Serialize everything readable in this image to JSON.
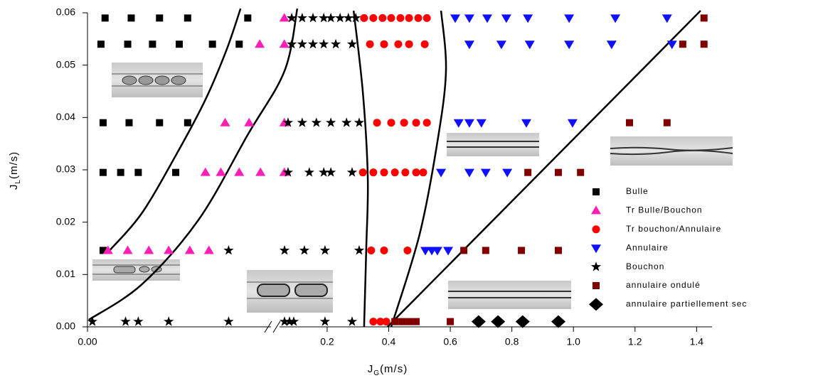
{
  "chart_data": {
    "type": "scatter",
    "xlabel": {
      "text": "J",
      "sub": "G",
      "unit": "(m/s)"
    },
    "ylabel": {
      "text": "J",
      "sub": "L",
      "unit": "(m/s)"
    },
    "x_segments": [
      {
        "xlim": [
          0,
          0.012
        ],
        "xticks": [
          {
            "value": 0,
            "label": "0.00"
          }
        ]
      },
      {
        "xlim": [
          0.05,
          1.45
        ],
        "xticks": [
          0.2,
          0.4,
          0.6,
          0.8,
          {
            "value": 1,
            "label": "1.0"
          },
          1.2,
          1.4
        ]
      }
    ],
    "ylim": [
      0,
      0.06
    ],
    "yticks": [
      {
        "value": 0,
        "label": "0.00"
      },
      {
        "value": 0.01,
        "label": "0.01"
      },
      {
        "value": 0.02,
        "label": "0.02"
      },
      {
        "value": 0.03,
        "label": "0.03"
      },
      {
        "value": 0.04,
        "label": "0.04"
      },
      {
        "value": 0.05,
        "label": "0.05"
      },
      {
        "value": 0.06,
        "label": "0.06"
      }
    ],
    "legend": "right",
    "series": [
      {
        "name": "Bulle",
        "color": "#000000",
        "marker": "square",
        "x": [
          0.00115,
          0.00286,
          0.00471,
          0.00655,
          0.01048,
          0.00088,
          0.00263,
          0.00425,
          0.006,
          0.00817,
          0.00992,
          0.00102,
          0.00272,
          0.00471,
          0.00655,
          0.00102,
          0.00217,
          0.00332,
          0.00577,
          0.00102
        ],
        "values": [
          0.059,
          0.059,
          0.059,
          0.059,
          0.059,
          0.054,
          0.054,
          0.054,
          0.054,
          0.054,
          0.054,
          0.039,
          0.039,
          0.039,
          0.039,
          0.0295,
          0.0295,
          0.0295,
          0.0295,
          0.0146
        ]
      },
      {
        "name": "Tr Bulle/Bouchon",
        "color": "#ff1fb4",
        "marker": "triangle-up",
        "x": [
          0.061,
          0.01126,
          0.061,
          0.009,
          0.01057,
          0.061,
          0.00771,
          0.00872,
          0.00992,
          0.01131,
          0.061,
          0.00134,
          0.00263,
          0.00401,
          0.00531,
          0.00669,
          0.00794
        ],
        "values": [
          0.059,
          0.054,
          0.054,
          0.039,
          0.039,
          0.039,
          0.0295,
          0.0295,
          0.0295,
          0.0295,
          0.0295,
          0.0146,
          0.0146,
          0.0146,
          0.0146,
          0.0146,
          0.0146
        ]
      },
      {
        "name": "Tr bouchon/Annulaire",
        "color": "#ff0000",
        "marker": "circle",
        "x": [
          0.32,
          0.35,
          0.38,
          0.408,
          0.438,
          0.466,
          0.496,
          0.524,
          0.339,
          0.385,
          0.431,
          0.466,
          0.517,
          0.362,
          0.408,
          0.45,
          0.489,
          0.524,
          0.316,
          0.35,
          0.385,
          0.42,
          0.454,
          0.489,
          0.512,
          0.343,
          0.385,
          0.461,
          0.35,
          0.373,
          0.392
        ],
        "values": [
          0.059,
          0.059,
          0.059,
          0.059,
          0.059,
          0.059,
          0.059,
          0.059,
          0.054,
          0.054,
          0.054,
          0.054,
          0.054,
          0.039,
          0.039,
          0.039,
          0.039,
          0.039,
          0.0295,
          0.0295,
          0.0295,
          0.0295,
          0.0295,
          0.0295,
          0.0295,
          0.0146,
          0.0146,
          0.0146,
          0.001,
          0.001,
          0.001
        ]
      },
      {
        "name": "Annulaire",
        "color": "#1010ff",
        "marker": "triangle-down",
        "x": [
          0.616,
          0.662,
          0.72,
          0.782,
          0.852,
          0.986,
          1.136,
          1.304,
          0.662,
          0.766,
          0.858,
          0.986,
          1.124,
          1.32,
          0.627,
          0.662,
          0.701,
          0.847,
          0.997,
          0.57,
          0.662,
          0.715,
          0.785,
          0.519,
          0.54,
          0.558,
          0.593
        ],
        "values": [
          0.059,
          0.059,
          0.059,
          0.059,
          0.059,
          0.059,
          0.059,
          0.059,
          0.054,
          0.054,
          0.054,
          0.054,
          0.054,
          0.054,
          0.039,
          0.039,
          0.039,
          0.039,
          0.039,
          0.0295,
          0.0295,
          0.0295,
          0.0295,
          0.0146,
          0.0146,
          0.0146,
          0.0146
        ]
      },
      {
        "name": "Bouchon",
        "color": "#000000",
        "marker": "star",
        "x": [
          0.085,
          0.119,
          0.154,
          0.189,
          0.212,
          0.242,
          0.269,
          0.293,
          0.085,
          0.119,
          0.154,
          0.189,
          0.228,
          0.281,
          0.073,
          0.119,
          0.165,
          0.212,
          0.263,
          0.304,
          0.073,
          0.142,
          0.189,
          0.212,
          0.281,
          0.00923,
          0.0616,
          0.126,
          0.193,
          0.304,
          0.00032,
          0.00249,
          0.00332,
          0.00531,
          0.00923,
          0.0616,
          0.0777,
          0.0916,
          0.193,
          0.281
        ],
        "values": [
          0.059,
          0.059,
          0.059,
          0.059,
          0.059,
          0.059,
          0.059,
          0.059,
          0.054,
          0.054,
          0.054,
          0.054,
          0.054,
          0.054,
          0.039,
          0.039,
          0.039,
          0.039,
          0.039,
          0.039,
          0.0295,
          0.0295,
          0.0295,
          0.0295,
          0.0295,
          0.0146,
          0.0146,
          0.0146,
          0.0146,
          0.0146,
          0.001,
          0.001,
          0.001,
          0.001,
          0.001,
          0.001,
          0.001,
          0.001,
          0.001,
          0.001
        ]
      },
      {
        "name": "annulaire ondulé",
        "color": "#800000",
        "marker": "square",
        "x": [
          1.424,
          1.355,
          1.424,
          1.182,
          1.304,
          0.852,
          0.951,
          1.023,
          0.644,
          0.715,
          0.831,
          0.951,
          0.42,
          0.443,
          0.466,
          0.489,
          0.6
        ],
        "values": [
          0.059,
          0.054,
          0.054,
          0.039,
          0.039,
          0.0295,
          0.0295,
          0.0295,
          0.0146,
          0.0146,
          0.0146,
          0.0146,
          0.001,
          0.001,
          0.001,
          0.001,
          0.001
        ]
      },
      {
        "name": "annulaire partiellement sec",
        "color": "#000000",
        "marker": "diamond",
        "x": [
          0.692,
          0.755,
          0.835,
          0.951
        ],
        "values": [
          0.001,
          0.001,
          0.001,
          0.001
        ]
      }
    ],
    "boundary_lines": [
      {
        "color": "#000000",
        "x": [
          0.00148,
          0.00355,
          0.00586,
          0.00771,
          0.00909,
          0.01001
        ],
        "y": [
          0.0147,
          0.0217,
          0.0332,
          0.0434,
          0.0529,
          0.0608
        ]
      },
      {
        "color": "#000000",
        "x": [
          9e-05,
          0.00355,
          0.00725,
          0.01048,
          0.0616,
          0.103
        ],
        "y": [
          0.00136,
          0.0081,
          0.0204,
          0.0367,
          0.0489,
          0.0608
        ]
      },
      {
        "color": "#000000",
        "x": [
          0.286,
          0.316,
          0.332,
          0.327,
          0.32
        ],
        "y": [
          0.0604,
          0.0448,
          0.0285,
          0.0149,
          0
        ]
      },
      {
        "color": "#000000",
        "x": [
          0.57,
          0.586,
          0.558,
          0.5,
          0.408
        ],
        "y": [
          0.0604,
          0.0489,
          0.0353,
          0.0176,
          0
        ]
      },
      {
        "color": "#000000",
        "x": [
          0.396,
          1.413
        ],
        "y": [
          0,
          0.0604
        ]
      }
    ]
  }
}
